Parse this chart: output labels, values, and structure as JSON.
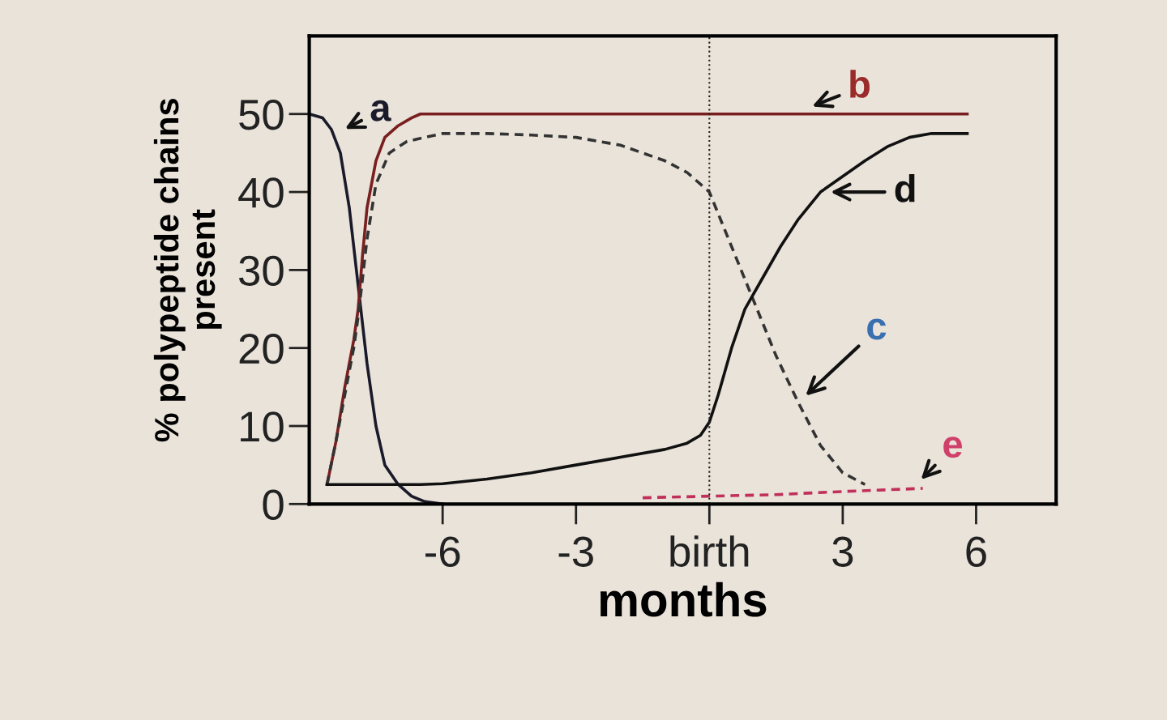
{
  "chart_data": {
    "type": "line",
    "xlabel": "months",
    "ylabel": "% polypeptide chains\npresent",
    "xlim": [
      -9,
      7.8
    ],
    "ylim": [
      0,
      60
    ],
    "xticks": [
      -6,
      -3,
      {
        "value": 0,
        "label": "birth"
      },
      3,
      6
    ],
    "yticks": [
      0,
      10,
      20,
      30,
      40,
      50
    ],
    "grid": false,
    "legend": false,
    "series": [
      {
        "color": "#1a1a2a",
        "line_style": "solid",
        "x": [
          -9,
          -8.7,
          -8.5,
          -8.3,
          -8.1,
          -7.9,
          -7.7,
          -7.5,
          -7.3,
          -7.0,
          -6.7,
          -6.4,
          -6.0
        ],
        "values": [
          50,
          49.5,
          48,
          45,
          38,
          28,
          18,
          10,
          5,
          2.5,
          1,
          0.3,
          0
        ]
      },
      {
        "color": "#7a1f1f",
        "line_style": "solid",
        "x": [
          -8.6,
          -8.4,
          -8.2,
          -8.0,
          -7.9,
          -7.8,
          -7.7,
          -7.5,
          -7.3,
          -7.0,
          -6.7,
          -6.5,
          0,
          5.8
        ],
        "values": [
          2.5,
          8,
          15,
          21,
          25,
          32,
          38,
          44,
          47,
          48.5,
          49.5,
          50,
          50,
          50
        ]
      },
      {
        "color": "#333333",
        "line_style": "dashed",
        "x": [
          -8.6,
          -8.4,
          -8.2,
          -8.0,
          -7.9,
          -7.8,
          -7.7,
          -7.5,
          -7.2,
          -6.8,
          -6.0,
          -5.0,
          -4.0,
          -3.0,
          -2.0,
          -1.0,
          -0.5,
          0,
          0.5,
          1.0,
          1.5,
          2.0,
          2.5,
          3.0,
          3.5
        ],
        "values": [
          2.5,
          8,
          14,
          20,
          24,
          29,
          34,
          41,
          45,
          46.5,
          47.5,
          47.5,
          47.3,
          47,
          46,
          44,
          42.5,
          40,
          33,
          26,
          19,
          13,
          7.5,
          4,
          2.5
        ]
      },
      {
        "color": "#111111",
        "line_style": "solid",
        "x": [
          -8.6,
          -7.5,
          -6.5,
          -6.0,
          -5.0,
          -4.0,
          -3.0,
          -2.0,
          -1.0,
          -0.5,
          -0.2,
          0,
          0.2,
          0.5,
          0.8,
          1.2,
          1.6,
          2.0,
          2.5,
          3.0,
          3.5,
          4.0,
          4.5,
          5.0,
          5.8
        ],
        "values": [
          2.5,
          2.5,
          2.5,
          2.6,
          3.2,
          4,
          5,
          6,
          7,
          7.8,
          8.8,
          10.5,
          14,
          20,
          25,
          29,
          33,
          36.5,
          40,
          42,
          44,
          45.8,
          47,
          47.5,
          47.5
        ]
      },
      {
        "color": "#c0305a",
        "line_style": "dashed",
        "x": [
          -1.5,
          0,
          1.5,
          3.0,
          4.8
        ],
        "values": [
          0.8,
          1,
          1.2,
          1.6,
          2
        ]
      }
    ],
    "ref_lines": [
      {
        "axis": "x",
        "value": 0,
        "label": null,
        "color": "#222222",
        "line_style": "dotted"
      }
    ],
    "annotations": [
      {
        "text": "a",
        "x": -8.4,
        "y": 47.5
      },
      {
        "text": "b",
        "x": 2.1,
        "y": 50.5
      },
      {
        "text": "c",
        "x": 2.0,
        "y": 13
      },
      {
        "text": "d",
        "x": 2.5,
        "y": 40
      },
      {
        "text": "e",
        "x": 4.6,
        "y": 2.2
      }
    ]
  }
}
